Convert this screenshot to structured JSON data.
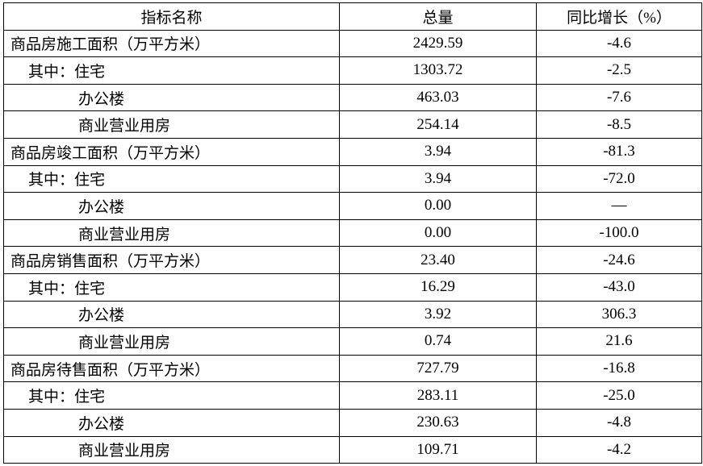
{
  "headers": [
    "指标名称",
    "总量",
    "同比增长（%）"
  ],
  "rows": [
    {
      "name": "商品房施工面积（万平方米）",
      "level": 0,
      "total": "2429.59",
      "growth": "-4.6"
    },
    {
      "name": "其中：住宅",
      "level": 1,
      "total": "1303.72",
      "growth": "-2.5"
    },
    {
      "name": "办公楼",
      "level": 2,
      "total": "463.03",
      "growth": "-7.6"
    },
    {
      "name": "商业营业用房",
      "level": 2,
      "total": "254.14",
      "growth": "-8.5"
    },
    {
      "name": "商品房竣工面积（万平方米）",
      "level": 0,
      "total": "3.94",
      "growth": "-81.3"
    },
    {
      "name": "其中：住宅",
      "level": 1,
      "total": "3.94",
      "growth": "-72.0"
    },
    {
      "name": "办公楼",
      "level": 2,
      "total": "0.00",
      "growth": "—"
    },
    {
      "name": "商业营业用房",
      "level": 2,
      "total": "0.00",
      "growth": "-100.0"
    },
    {
      "name": "商品房销售面积（万平方米）",
      "level": 0,
      "total": "23.40",
      "growth": "-24.6"
    },
    {
      "name": "其中：住宅",
      "level": 1,
      "total": "16.29",
      "growth": "-43.0"
    },
    {
      "name": "办公楼",
      "level": 2,
      "total": "3.92",
      "growth": "306.3"
    },
    {
      "name": "商业营业用房",
      "level": 2,
      "total": "0.74",
      "growth": "21.6"
    },
    {
      "name": "商品房待售面积（万平方米）",
      "level": 0,
      "total": "727.79",
      "growth": "-16.8"
    },
    {
      "name": "其中：住宅",
      "level": 1,
      "total": "283.11",
      "growth": "-25.0"
    },
    {
      "name": "办公楼",
      "level": 2,
      "total": "230.63",
      "growth": "-4.8"
    },
    {
      "name": "商业营业用房",
      "level": 2,
      "total": "109.71",
      "growth": "-4.2"
    }
  ]
}
